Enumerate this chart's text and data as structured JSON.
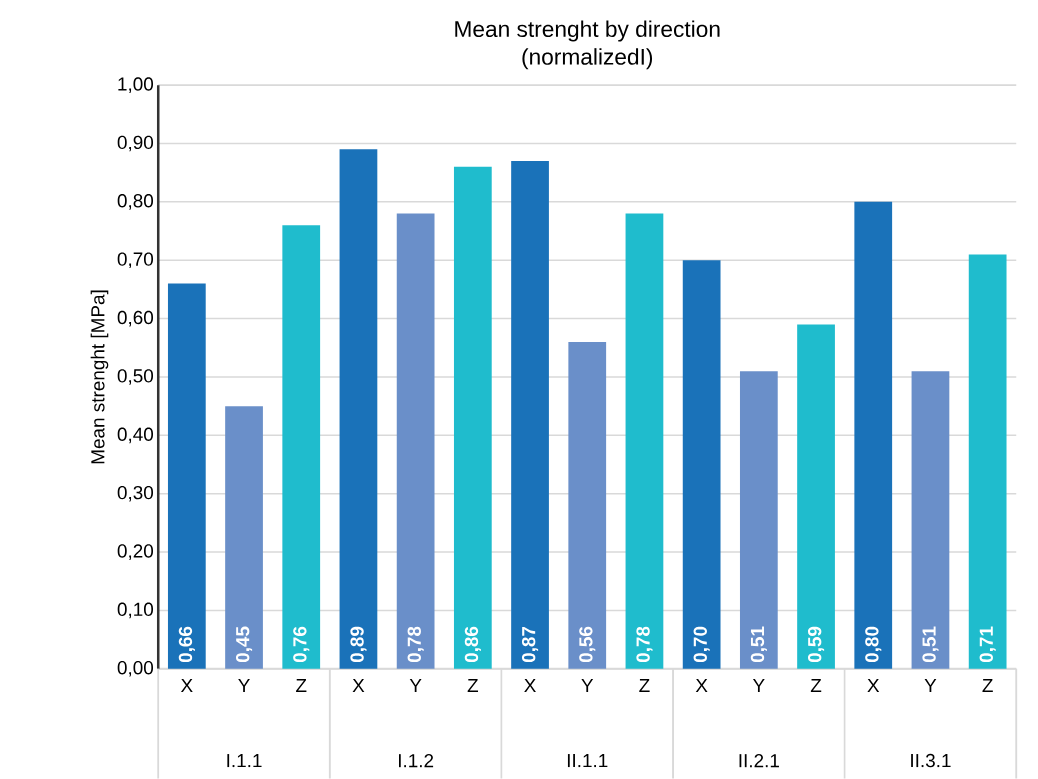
{
  "chart_data": {
    "type": "bar",
    "title": "Mean strenght by direction",
    "subtitle": "(normalizedI)",
    "ylabel": "Mean strenght [MPa]",
    "categories": [
      "X",
      "Y",
      "Z",
      "X",
      "Y",
      "Z",
      "X",
      "Y",
      "Z",
      "X",
      "Y",
      "Z",
      "X",
      "Y",
      "Z"
    ],
    "values": [
      0.66,
      0.45,
      0.76,
      0.89,
      0.78,
      0.86,
      0.87,
      0.56,
      0.78,
      0.7,
      0.51,
      0.59,
      0.8,
      0.51,
      0.71
    ],
    "value_labels": [
      "0,66",
      "0,45",
      "0,76",
      "0,89",
      "0,78",
      "0,86",
      "0,87",
      "0,56",
      "0,78",
      "0,70",
      "0,51",
      "0,59",
      "0,80",
      "0,51",
      "0,71"
    ],
    "colors": [
      "#1a72b9",
      "#6a8fc9",
      "#1fbccd",
      "#1a72b9",
      "#6a8fc9",
      "#1fbccd",
      "#1a72b9",
      "#6a8fc9",
      "#1fbccd",
      "#1a72b9",
      "#6a8fc9",
      "#1fbccd",
      "#1a72b9",
      "#6a8fc9",
      "#1fbccd"
    ],
    "annotations": [
      "I.1.1",
      "I.1.2",
      "II.1.1",
      "II.2.1",
      "II.3.1"
    ],
    "ylim": [
      0,
      1
    ],
    "yticks": [
      {
        "value": 0,
        "label": "0,00"
      },
      {
        "value": 0.1,
        "label": "0,10"
      },
      {
        "value": 0.2,
        "label": "0,20"
      },
      {
        "value": 0.3,
        "label": "0,30"
      },
      {
        "value": 0.4,
        "label": "0,40"
      },
      {
        "value": 0.5,
        "label": "0,50"
      },
      {
        "value": 0.6,
        "label": "0,60"
      },
      {
        "value": 0.7,
        "label": "0,70"
      },
      {
        "value": 0.8,
        "label": "0,80"
      },
      {
        "value": 0.9,
        "label": "0,90"
      },
      {
        "value": 1,
        "label": "1,00"
      }
    ],
    "grid": "y"
  }
}
